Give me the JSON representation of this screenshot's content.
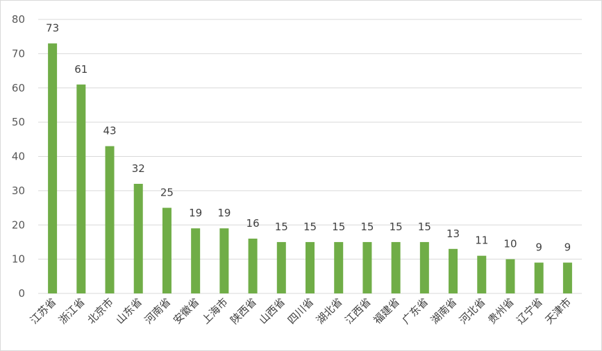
{
  "chart_data": {
    "type": "bar",
    "categories": [
      "江苏省",
      "浙江省",
      "北京市",
      "山东省",
      "河南省",
      "安徽省",
      "上海市",
      "陕西省",
      "山西省",
      "四川省",
      "湖北省",
      "江西省",
      "福建省",
      "广东省",
      "湖南省",
      "河北省",
      "贵州省",
      "辽宁省",
      "天津市"
    ],
    "values": [
      73,
      61,
      43,
      32,
      25,
      19,
      19,
      16,
      15,
      15,
      15,
      15,
      15,
      15,
      13,
      11,
      10,
      9,
      9
    ],
    "ylim": [
      0,
      80
    ],
    "yticks": [
      0,
      10,
      20,
      30,
      40,
      50,
      60,
      70,
      80
    ],
    "grid": true,
    "legend": "none",
    "data_labels": true,
    "colors": {
      "bar": "#70ad47",
      "grid": "#d9d9d9",
      "axis": "#d9d9d9"
    }
  }
}
